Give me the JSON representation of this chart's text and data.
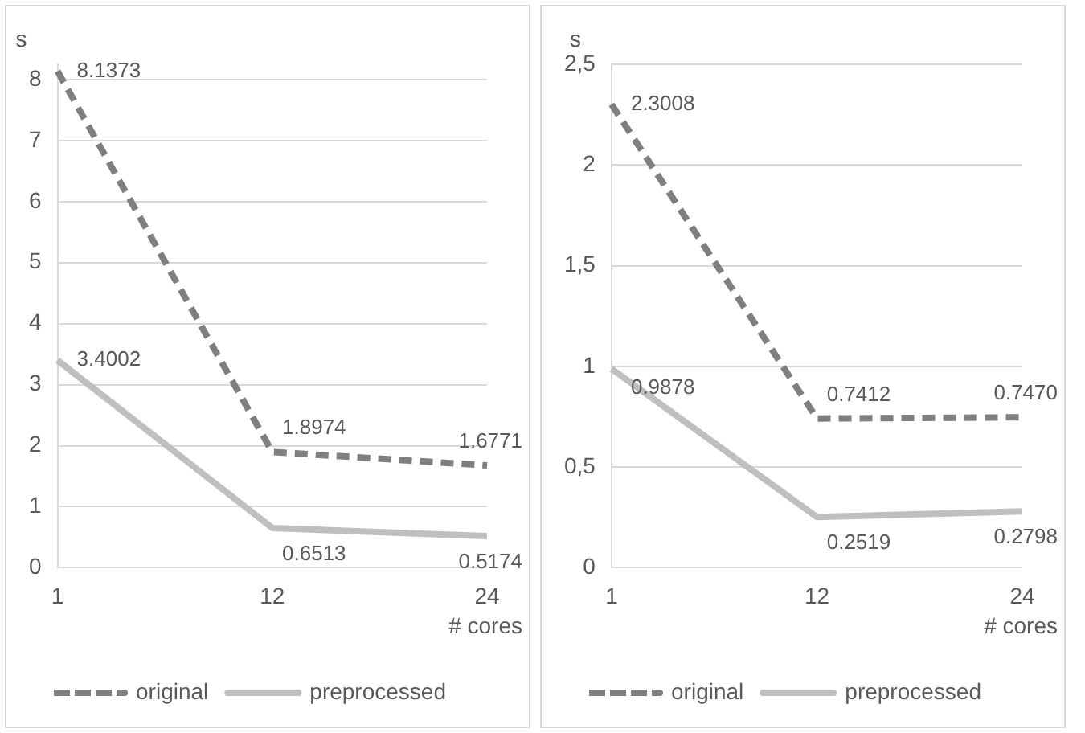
{
  "chart_data": [
    {
      "type": "line",
      "categories": [
        "1",
        "12",
        "24"
      ],
      "xlabel": "# cores",
      "ylabel": "s",
      "ylim": [
        0,
        8.25
      ],
      "yticks": [
        0,
        1,
        2,
        3,
        4,
        5,
        6,
        7,
        8
      ],
      "grid": "y",
      "legend": "bottom",
      "marker": "none",
      "series": [
        {
          "name": "original",
          "color": "#7f7f7f",
          "line_style": "dashed",
          "values": [
            8.1373,
            1.8974,
            1.6771
          ],
          "value_labels": [
            "8.1373",
            "1.8974",
            "1.6771"
          ]
        },
        {
          "name": "preprocessed",
          "color": "#bfbfbf",
          "line_style": "solid",
          "values": [
            3.4002,
            0.6513,
            0.5174
          ],
          "value_labels": [
            "3.4002",
            "0.6513",
            "0.5174"
          ]
        }
      ]
    },
    {
      "type": "line",
      "categories": [
        "1",
        "12",
        "24"
      ],
      "xlabel": "# cores",
      "ylabel": "s",
      "ylim": [
        0,
        2.5
      ],
      "yticks": [
        0,
        {
          "value": 0.5,
          "label": "0,5"
        },
        1,
        {
          "value": 1.5,
          "label": "1,5"
        },
        2,
        {
          "value": 2.5,
          "label": "2,5"
        }
      ],
      "grid": "y",
      "legend": "bottom",
      "marker": "none",
      "series": [
        {
          "name": "original",
          "color": "#7f7f7f",
          "line_style": "dashed",
          "values": [
            2.3008,
            0.7412,
            0.747
          ],
          "value_labels": [
            "2.3008",
            "0.7412",
            "0.7470"
          ]
        },
        {
          "name": "preprocessed",
          "color": "#bfbfbf",
          "line_style": "solid",
          "values": [
            0.9878,
            0.2519,
            0.2798
          ],
          "value_labels": [
            "0.9878",
            "0.2519",
            "0.2798"
          ]
        }
      ]
    }
  ]
}
